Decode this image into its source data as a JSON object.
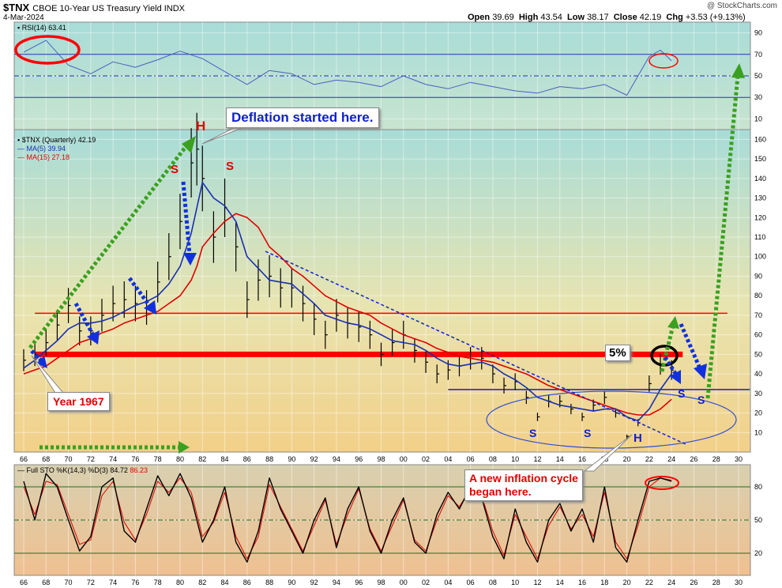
{
  "header": {
    "symbol": "$TNX",
    "name": "CBOE 10-Year US Treasury Yield INDX",
    "date": "4-Mar-2024",
    "open_label": "Open",
    "open": "39.69",
    "high_label": "High",
    "high": "43.54",
    "low_label": "Low",
    "low": "38.17",
    "close_label": "Close",
    "close": "42.19",
    "chg_label": "Chg",
    "chg": "+3.53 (+9.13%)",
    "brand": "@ StockCharts.com"
  },
  "legends": {
    "rsi": "RSI(14) 63.41",
    "price": "$TNX (Quarterly) 42.19",
    "ma5": "MA(5) 39.94",
    "ma15": "MA(15) 27.18",
    "sto_label": "Full STO %K(14,3) %D(3)",
    "sto_k": "84.72",
    "sto_d": "86.23"
  },
  "annotations": {
    "deflation": "Deflation started here.",
    "year1967": "Year 1967",
    "inflation_line1": "A new inflation cycle",
    "inflation_line2": "began here.",
    "five_pct": "5%",
    "H_top": "H",
    "S_left": "S",
    "S_right": "S",
    "H_bottom": "H",
    "S_bl": "S",
    "S_bm": "S",
    "S_r1": "S",
    "S_r2": "S"
  },
  "colors": {
    "price": "#000000",
    "ma5": "#1a2fb0",
    "ma15": "#e00000",
    "rsi_line": "#4a5fc0",
    "sto_k": "#000000",
    "sto_d": "#e00000",
    "arrow_green": "#3aa020",
    "arrow_blue": "#1030e0",
    "red_line": "#ff0000",
    "blue_line": "#1020d0"
  },
  "chart_data": [
    {
      "type": "line",
      "panel": "RSI",
      "ylim": [
        0,
        100
      ],
      "y_ticks": [
        90,
        70,
        50,
        30,
        10
      ],
      "reference_lines": [
        70,
        50,
        30
      ],
      "x": [
        1966,
        1968,
        1970,
        1972,
        1974,
        1976,
        1978,
        1980,
        1982,
        1984,
        1986,
        1988,
        1990,
        1992,
        1994,
        1996,
        1998,
        2000,
        2002,
        2004,
        2006,
        2008,
        2010,
        2012,
        2014,
        2016,
        2018,
        2020,
        2022,
        2023,
        2024
      ],
      "values": [
        72,
        83,
        60,
        52,
        63,
        58,
        65,
        73,
        66,
        54,
        42,
        55,
        52,
        42,
        46,
        44,
        40,
        50,
        42,
        38,
        44,
        40,
        36,
        34,
        40,
        38,
        42,
        32,
        68,
        74,
        64
      ]
    },
    {
      "type": "line",
      "panel": "Price",
      "title": "$TNX (Quarterly)",
      "ylim": [
        0,
        165
      ],
      "y_ticks": [
        160,
        150,
        140,
        130,
        120,
        110,
        100,
        90,
        80,
        70,
        60,
        50,
        40,
        30,
        20,
        10
      ],
      "x_ticks": [
        "66",
        "68",
        "70",
        "72",
        "74",
        "76",
        "78",
        "80",
        "82",
        "84",
        "86",
        "88",
        "90",
        "92",
        "94",
        "96",
        "98",
        "00",
        "02",
        "04",
        "06",
        "08",
        "10",
        "12",
        "14",
        "16",
        "18",
        "20",
        "22",
        "24",
        "26",
        "28",
        "30"
      ],
      "x": [
        1966,
        1967,
        1968,
        1969,
        1970,
        1971,
        1972,
        1973,
        1974,
        1975,
        1976,
        1977,
        1978,
        1979,
        1980,
        1981,
        1981.5,
        1982,
        1983,
        1984,
        1985,
        1986,
        1987,
        1988,
        1989,
        1990,
        1991,
        1992,
        1993,
        1994,
        1995,
        1996,
        1997,
        1998,
        1999,
        2000,
        2001,
        2002,
        2003,
        2004,
        2005,
        2006,
        2007,
        2008,
        2009,
        2010,
        2011,
        2012,
        2013,
        2014,
        2015,
        2016,
        2017,
        2018,
        2019,
        2020,
        2021,
        2022,
        2023,
        2024
      ],
      "series": [
        {
          "name": "$TNX",
          "values": [
            47,
            50,
            56,
            65,
            75,
            62,
            62,
            70,
            76,
            78,
            76,
            74,
            87,
            100,
            118,
            148,
            155,
            140,
            110,
            125,
            105,
            78,
            88,
            90,
            84,
            84,
            76,
            68,
            60,
            70,
            66,
            64,
            60,
            50,
            56,
            60,
            52,
            46,
            40,
            42,
            44,
            48,
            48,
            40,
            34,
            36,
            28,
            18,
            26,
            26,
            22,
            18,
            24,
            28,
            20,
            8,
            15,
            35,
            45,
            42
          ]
        },
        {
          "name": "MA(5)",
          "values": [
            43,
            47,
            52,
            57,
            63,
            66,
            66,
            67,
            69,
            72,
            75,
            77,
            80,
            86,
            95,
            112,
            125,
            138,
            130,
            126,
            118,
            100,
            94,
            88,
            87,
            86,
            81,
            76,
            70,
            68,
            66,
            65,
            63,
            60,
            57,
            56,
            55,
            52,
            48,
            45,
            44,
            45,
            46,
            44,
            40,
            37,
            33,
            28,
            26,
            24,
            23,
            22,
            21,
            22,
            22,
            18,
            16,
            22,
            32,
            40
          ]
        },
        {
          "name": "MA(15)",
          "values": [
            40,
            42,
            44,
            48,
            52,
            56,
            58,
            61,
            63,
            66,
            68,
            70,
            72,
            76,
            80,
            88,
            95,
            105,
            112,
            118,
            122,
            120,
            115,
            105,
            100,
            94,
            90,
            85,
            80,
            77,
            74,
            72,
            70,
            66,
            63,
            60,
            58,
            56,
            53,
            51,
            49,
            48,
            47,
            46,
            44,
            42,
            40,
            37,
            34,
            32,
            30,
            28,
            26,
            24,
            22,
            20,
            19,
            19,
            22,
            27
          ]
        }
      ],
      "horizontal_lines": [
        {
          "y": 71,
          "color": "red",
          "from": 1967,
          "to": 2029
        },
        {
          "y": 50,
          "color": "red",
          "style": "thick",
          "from": 1967,
          "to": 2025
        },
        {
          "y": 32,
          "color": "blue",
          "from": 2004,
          "to": 2031
        }
      ]
    },
    {
      "type": "line",
      "panel": "Stochastic",
      "ylim": [
        0,
        100
      ],
      "y_ticks": [
        80,
        50,
        20
      ],
      "reference_lines": [
        80,
        50,
        20
      ],
      "x": [
        1966,
        1967,
        1968,
        1969,
        1970,
        1971,
        1972,
        1973,
        1974,
        1975,
        1976,
        1977,
        1978,
        1979,
        1980,
        1981,
        1982,
        1983,
        1984,
        1985,
        1986,
        1987,
        1988,
        1989,
        1990,
        1991,
        1992,
        1993,
        1994,
        1995,
        1996,
        1997,
        1998,
        1999,
        2000,
        2001,
        2002,
        2003,
        2004,
        2005,
        2006,
        2007,
        2008,
        2009,
        2010,
        2011,
        2012,
        2013,
        2014,
        2015,
        2016,
        2017,
        2018,
        2019,
        2020,
        2021,
        2022,
        2023,
        2024
      ],
      "series": [
        {
          "name": "%K",
          "values": [
            85,
            50,
            92,
            80,
            50,
            22,
            35,
            80,
            88,
            40,
            30,
            60,
            90,
            72,
            92,
            70,
            30,
            50,
            80,
            30,
            12,
            40,
            88,
            60,
            40,
            20,
            50,
            70,
            25,
            60,
            80,
            40,
            20,
            50,
            70,
            30,
            20,
            55,
            75,
            60,
            80,
            70,
            35,
            15,
            60,
            30,
            12,
            50,
            65,
            40,
            60,
            30,
            80,
            25,
            12,
            50,
            85,
            88,
            85
          ]
        },
        {
          "name": "%D",
          "values": [
            80,
            55,
            85,
            82,
            55,
            28,
            32,
            72,
            85,
            48,
            32,
            55,
            85,
            75,
            88,
            75,
            35,
            48,
            75,
            35,
            15,
            35,
            82,
            62,
            42,
            22,
            45,
            68,
            28,
            55,
            78,
            42,
            22,
            45,
            68,
            32,
            22,
            50,
            72,
            62,
            78,
            72,
            40,
            18,
            55,
            35,
            15,
            45,
            62,
            42,
            55,
            35,
            75,
            30,
            15,
            45,
            80,
            88,
            86
          ]
        }
      ]
    }
  ]
}
